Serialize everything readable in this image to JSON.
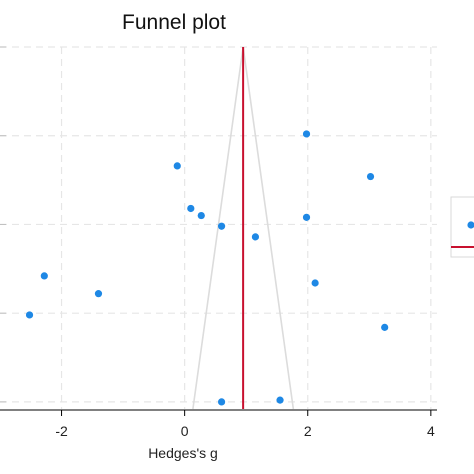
{
  "chart_data": {
    "type": "scatter",
    "title": "Funnel plot",
    "xlabel": "Hedges's g",
    "ylabel": "",
    "xlim": [
      -3.0,
      4.1
    ],
    "ylim": [
      1.02,
      0.0
    ],
    "xticks": [
      -2,
      0,
      2,
      4
    ],
    "xtick_labels": [
      "-2",
      "0",
      "2",
      "4"
    ],
    "yticks": [
      0.0,
      0.25,
      0.5,
      0.75,
      1.0
    ],
    "grid": true,
    "pooled_effect": 0.95,
    "funnel_half_width_at_max": 0.8,
    "legend_placement": "right",
    "colors": {
      "points": "#1e88e5",
      "effect_line": "#c8102e",
      "funnel": "#dcdcdc"
    },
    "points": [
      {
        "x": 1.98,
        "y": 0.245
      },
      {
        "x": -0.12,
        "y": 0.335
      },
      {
        "x": 3.02,
        "y": 0.365
      },
      {
        "x": 0.1,
        "y": 0.455
      },
      {
        "x": 0.27,
        "y": 0.475
      },
      {
        "x": 1.98,
        "y": 0.48
      },
      {
        "x": 0.6,
        "y": 0.505
      },
      {
        "x": 1.15,
        "y": 0.535
      },
      {
        "x": -2.28,
        "y": 0.645
      },
      {
        "x": 2.12,
        "y": 0.665
      },
      {
        "x": -1.4,
        "y": 0.695
      },
      {
        "x": -2.52,
        "y": 0.755
      },
      {
        "x": 3.25,
        "y": 0.79
      },
      {
        "x": 0.6,
        "y": 1.0
      },
      {
        "x": 1.55,
        "y": 0.995
      }
    ]
  }
}
